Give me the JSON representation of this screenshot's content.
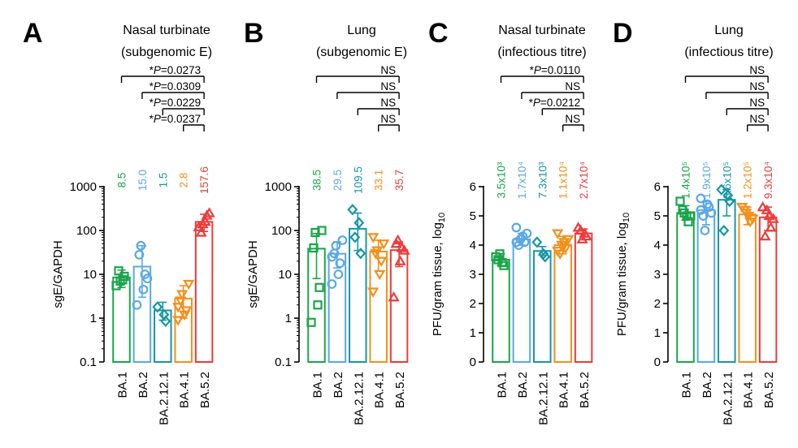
{
  "colors": {
    "BA.1": "#1aa54a",
    "BA.2": "#5aa8e6",
    "BA.2.12.1": "#1796a6",
    "BA.4.1": "#f39019",
    "BA.5.2": "#ec3b3b"
  },
  "chart_data": [
    {
      "id": "A",
      "type": "bar",
      "panel_letter": "A",
      "title_line1": "Nasal turbinate",
      "title_line2": "(subgenomic E)",
      "ylabel": "sgE/GAPDH",
      "scale": "log",
      "ylim": [
        0.1,
        1000
      ],
      "yticks": [
        0.1,
        1,
        10,
        100,
        1000
      ],
      "ytick_labels": [
        "0.1",
        "1",
        "10",
        "100",
        "1000"
      ],
      "categories": [
        "BA.1",
        "BA.2",
        "BA.2.12.1",
        "BA.4.1",
        "BA.5.2"
      ],
      "markers": [
        "square",
        "circle",
        "diamond",
        "triangle-down",
        "triangle-up"
      ],
      "values": [
        8.5,
        15.0,
        1.5,
        2.8,
        157.6
      ],
      "value_labels": [
        "8.5",
        "15.0",
        "1.5",
        "2.8",
        "157.6"
      ],
      "error_low": [
        5.0,
        3.0,
        0.9,
        1.0,
        95
      ],
      "error_high": [
        12.5,
        45.0,
        2.3,
        5.5,
        235
      ],
      "points": [
        [
          5.5,
          7.5,
          9.0,
          12.0,
          7.0
        ],
        [
          2.0,
          4.5,
          10.0,
          28.0,
          45.0,
          8.0
        ],
        [
          1.8,
          1.2,
          0.85
        ],
        [
          0.9,
          1.2,
          1.5,
          2.5,
          3.5,
          6.0,
          1.8
        ],
        [
          120,
          160,
          220,
          90,
          140,
          250
        ]
      ],
      "comparisons": [
        {
          "from": 0,
          "label_prefix": "*",
          "label_italic": "P",
          "label_suffix": "=0.0273"
        },
        {
          "from": 1,
          "label_prefix": "*",
          "label_italic": "P",
          "label_suffix": "=0.0309"
        },
        {
          "from": 2,
          "label_prefix": "*",
          "label_italic": "P",
          "label_suffix": "=0.0229"
        },
        {
          "from": 3,
          "label_prefix": "*",
          "label_italic": "P",
          "label_suffix": "=0.0237"
        }
      ]
    },
    {
      "id": "B",
      "type": "bar",
      "panel_letter": "B",
      "title_line1": "Lung",
      "title_line2": "(subgenomic E)",
      "ylabel": "sgE/GAPDH",
      "scale": "log",
      "ylim": [
        0.1,
        1000
      ],
      "yticks": [
        0.1,
        1,
        10,
        100,
        1000
      ],
      "ytick_labels": [
        "0.1",
        "1",
        "10",
        "100",
        "1000"
      ],
      "categories": [
        "BA.1",
        "BA.2",
        "BA.2.12.1",
        "BA.4.1",
        "BA.5.2"
      ],
      "markers": [
        "square",
        "circle",
        "diamond",
        "triangle-down",
        "triangle-up"
      ],
      "values": [
        38.5,
        29.5,
        109.5,
        33.1,
        35.7
      ],
      "value_labels": [
        "38.5",
        "29.5",
        "109.5",
        "33.1",
        "35.7"
      ],
      "error_low": [
        8.0,
        14.0,
        35.0,
        12.0,
        15.0
      ],
      "error_high": [
        85.0,
        55.0,
        250.0,
        60.0,
        55.0
      ],
      "points": [
        [
          0.8,
          2.0,
          5.0,
          40.0,
          90.0,
          100.0
        ],
        [
          6.0,
          10.0,
          18.0,
          30.0,
          45.0,
          60.0,
          25.0
        ],
        [
          300.0,
          150.0,
          30.0,
          70.0
        ],
        [
          4.0,
          10.0,
          20.0,
          30.0,
          35.0,
          50.0,
          70.0
        ],
        [
          3.0,
          20.0,
          40.0,
          50.0,
          60.0,
          35.0
        ]
      ],
      "comparisons": [
        {
          "from": 0,
          "label_prefix": "",
          "label_italic": "",
          "label_suffix": "NS"
        },
        {
          "from": 1,
          "label_prefix": "",
          "label_italic": "",
          "label_suffix": "NS"
        },
        {
          "from": 2,
          "label_prefix": "",
          "label_italic": "",
          "label_suffix": "NS"
        },
        {
          "from": 3,
          "label_prefix": "",
          "label_italic": "",
          "label_suffix": "NS"
        }
      ]
    },
    {
      "id": "C",
      "type": "bar",
      "panel_letter": "C",
      "title_line1": "Nasal turbinate",
      "title_line2": "(infectious titre)",
      "ylabel": "PFU/gram tissue, log10",
      "ylabel_main": "PFU/gram tissue, log",
      "ylabel_sub": "10",
      "scale": "linear",
      "ylim": [
        0,
        6
      ],
      "yticks": [
        0,
        1,
        2,
        3,
        4,
        5,
        6
      ],
      "ytick_labels": [
        "0",
        "1",
        "2",
        "3",
        "4",
        "5",
        "6"
      ],
      "categories": [
        "BA.1",
        "BA.2",
        "BA.2.12.1",
        "BA.4.1",
        "BA.5.2"
      ],
      "markers": [
        "square",
        "circle",
        "diamond",
        "triangle-down",
        "triangle-up"
      ],
      "values": [
        3.5,
        4.2,
        3.8,
        4.0,
        4.4
      ],
      "value_labels": [
        "3.5x10³",
        "1.7x10⁴",
        "7.3x10³",
        "1.1x10⁴",
        "2.7x10⁴"
      ],
      "error_low": [
        3.3,
        4.0,
        3.65,
        3.7,
        4.3
      ],
      "error_high": [
        3.7,
        4.4,
        3.95,
        4.3,
        4.55
      ],
      "points": [
        [
          3.6,
          3.4,
          3.3,
          3.5,
          3.7
        ],
        [
          4.6,
          4.3,
          4.1,
          4.0,
          4.2,
          4.4,
          4.1
        ],
        [
          4.1,
          3.7,
          3.6
        ],
        [
          4.4,
          4.1,
          3.9,
          3.7,
          4.0,
          4.2,
          3.8,
          4.0
        ],
        [
          4.6,
          4.4,
          4.3,
          4.5,
          4.2
        ]
      ],
      "comparisons": [
        {
          "from": 0,
          "label_prefix": "*",
          "label_italic": "P",
          "label_suffix": "=0.0110"
        },
        {
          "from": 1,
          "label_prefix": "",
          "label_italic": "",
          "label_suffix": "NS"
        },
        {
          "from": 2,
          "label_prefix": "*",
          "label_italic": "P",
          "label_suffix": "=0.0212"
        },
        {
          "from": 3,
          "label_prefix": "",
          "label_italic": "",
          "label_suffix": "NS"
        }
      ]
    },
    {
      "id": "D",
      "type": "bar",
      "panel_letter": "D",
      "title_line1": "Lung",
      "title_line2": "(infectious titre)",
      "ylabel": "PFU/gram tissue, log10",
      "ylabel_main": "PFU/gram tissue, log",
      "ylabel_sub": "10",
      "scale": "linear",
      "ylim": [
        0,
        6
      ],
      "yticks": [
        0,
        1,
        2,
        3,
        4,
        5,
        6
      ],
      "ytick_labels": [
        "0",
        "1",
        "2",
        "3",
        "4",
        "5",
        "6"
      ],
      "categories": [
        "BA.1",
        "BA.2",
        "BA.2.12.1",
        "BA.4.1",
        "BA.5.2"
      ],
      "markers": [
        "square",
        "circle",
        "diamond",
        "triangle-down",
        "triangle-up"
      ],
      "values": [
        5.1,
        5.2,
        5.55,
        5.05,
        4.95
      ],
      "value_labels": [
        "1.4x10⁵",
        "1.9x10⁵",
        "3.6x10⁵",
        "1.2x10⁵",
        "9.3x10⁴"
      ],
      "error_low": [
        4.85,
        4.7,
        5.0,
        4.7,
        4.5
      ],
      "error_high": [
        5.35,
        5.5,
        5.9,
        5.3,
        5.3
      ],
      "points": [
        [
          5.5,
          5.0,
          4.8,
          5.2,
          5.1,
          5.0
        ],
        [
          5.6,
          5.4,
          5.3,
          5.0,
          4.5,
          5.1,
          5.2
        ],
        [
          5.9,
          5.7,
          5.5,
          4.5
        ],
        [
          5.3,
          5.0,
          4.8,
          5.2,
          5.1,
          4.9,
          5.3
        ],
        [
          5.3,
          5.0,
          4.6,
          4.3,
          5.2,
          4.9
        ]
      ],
      "comparisons": [
        {
          "from": 0,
          "label_prefix": "",
          "label_italic": "",
          "label_suffix": "NS"
        },
        {
          "from": 1,
          "label_prefix": "",
          "label_italic": "",
          "label_suffix": "NS"
        },
        {
          "from": 2,
          "label_prefix": "",
          "label_italic": "",
          "label_suffix": "NS"
        },
        {
          "from": 3,
          "label_prefix": "",
          "label_italic": "",
          "label_suffix": "NS"
        }
      ]
    }
  ]
}
